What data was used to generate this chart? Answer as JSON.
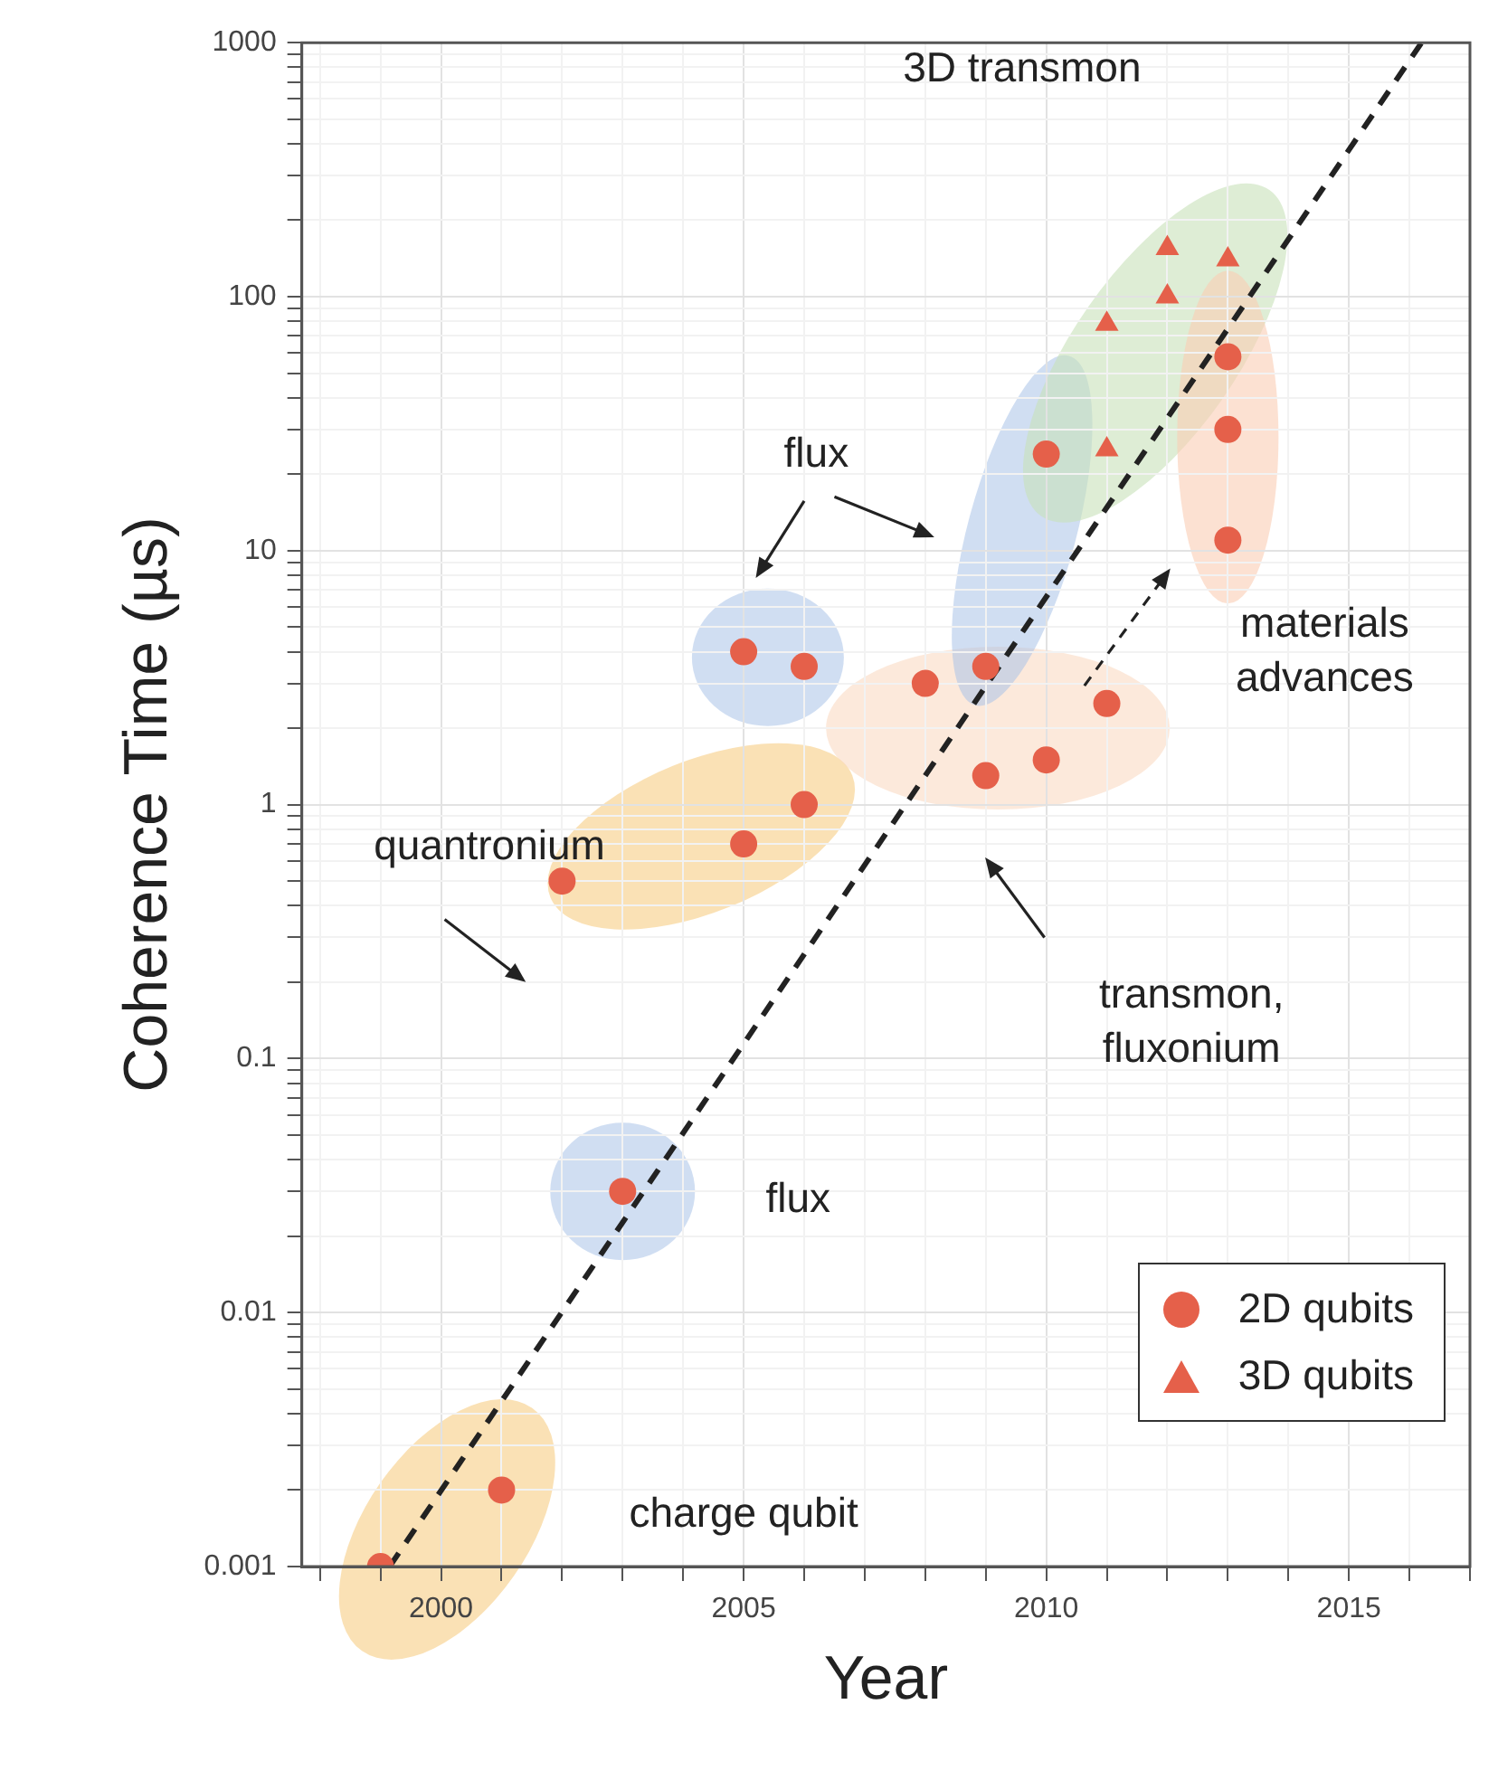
{
  "chart_data": {
    "type": "scatter",
    "xlabel": "Year",
    "ylabel": "Coherence Time (µs)",
    "log": "y",
    "grid": true,
    "legend": "bottom right",
    "xlim": [
      1997.7,
      2017
    ],
    "xticks": [
      {
        "value": 1998,
        "label": null
      },
      {
        "value": 1999,
        "label": null
      },
      2000,
      {
        "value": 2001,
        "label": null
      },
      {
        "value": 2002,
        "label": null
      },
      {
        "value": 2003,
        "label": null
      },
      {
        "value": 2004,
        "label": null
      },
      2005,
      {
        "value": 2006,
        "label": null
      },
      {
        "value": 2007,
        "label": null
      },
      {
        "value": 2008,
        "label": null
      },
      {
        "value": 2009,
        "label": null
      },
      2010,
      {
        "value": 2011,
        "label": null
      },
      {
        "value": 2012,
        "label": null
      },
      {
        "value": 2013,
        "label": null
      },
      {
        "value": 2014,
        "label": null
      },
      2015,
      {
        "value": 2016,
        "label": null
      },
      {
        "value": 2017,
        "label": null
      }
    ],
    "ylim": [
      0.001,
      1000
    ],
    "yticks": [
      0.001,
      {
        "value": 0.002,
        "label": null
      },
      {
        "value": 0.003,
        "label": null
      },
      {
        "value": 0.004,
        "label": null
      },
      {
        "value": 0.005,
        "label": null
      },
      {
        "value": 0.006,
        "label": null
      },
      {
        "value": 0.007,
        "label": null
      },
      {
        "value": 0.008,
        "label": null
      },
      {
        "value": 0.009,
        "label": null
      },
      0.01,
      {
        "value": 0.02,
        "label": null
      },
      {
        "value": 0.03,
        "label": null
      },
      {
        "value": 0.04,
        "label": null
      },
      {
        "value": 0.05,
        "label": null
      },
      {
        "value": 0.06,
        "label": null
      },
      {
        "value": 0.07,
        "label": null
      },
      {
        "value": 0.08,
        "label": null
      },
      {
        "value": 0.09,
        "label": null
      },
      0.1,
      {
        "value": 0.2,
        "label": null
      },
      {
        "value": 0.3,
        "label": null
      },
      {
        "value": 0.4,
        "label": null
      },
      {
        "value": 0.5,
        "label": null
      },
      {
        "value": 0.6,
        "label": null
      },
      {
        "value": 0.7,
        "label": null
      },
      {
        "value": 0.8,
        "label": null
      },
      {
        "value": 0.9,
        "label": null
      },
      1,
      {
        "value": 2,
        "label": null
      },
      {
        "value": 3,
        "label": null
      },
      {
        "value": 4,
        "label": null
      },
      {
        "value": 5,
        "label": null
      },
      {
        "value": 6,
        "label": null
      },
      {
        "value": 7,
        "label": null
      },
      {
        "value": 8,
        "label": null
      },
      {
        "value": 9,
        "label": null
      },
      10,
      {
        "value": 20,
        "label": null
      },
      {
        "value": 30,
        "label": null
      },
      {
        "value": 40,
        "label": null
      },
      {
        "value": 50,
        "label": null
      },
      {
        "value": 60,
        "label": null
      },
      {
        "value": 70,
        "label": null
      },
      {
        "value": 80,
        "label": null
      },
      {
        "value": 90,
        "label": null
      },
      100,
      {
        "value": 200,
        "label": null
      },
      {
        "value": 300,
        "label": null
      },
      {
        "value": 400,
        "label": null
      },
      {
        "value": 500,
        "label": null
      },
      {
        "value": 600,
        "label": null
      },
      {
        "value": 700,
        "label": null
      },
      {
        "value": 800,
        "label": null
      },
      {
        "value": 900,
        "label": null
      },
      1000
    ],
    "series": [
      {
        "name": "2D qubits",
        "marker": "circle",
        "color": "#e5604a",
        "x": [
          1999,
          2001,
          2003,
          2002,
          2005,
          2006,
          2005,
          2006,
          2008,
          2009,
          2009,
          2010,
          2011,
          2010,
          2013,
          2013,
          2013
        ],
        "values": [
          0.001,
          0.002,
          0.03,
          0.5,
          0.7,
          1.0,
          4,
          3.5,
          3,
          3.5,
          1.3,
          1.5,
          2.5,
          24,
          58,
          30,
          11
        ]
      },
      {
        "name": "3D qubits",
        "marker": "triangle",
        "color": "#e5604a",
        "x": [
          2011,
          2012,
          2012,
          2013,
          2011
        ],
        "values": [
          78,
          155,
          100,
          140,
          25
        ]
      },
      {
        "type": "line",
        "marker": "none",
        "line_style": "dashed",
        "color": "#222222",
        "x": [
          1999.15,
          2016.2
        ],
        "values": [
          0.001,
          1000
        ]
      }
    ],
    "annotations": [
      "3D transmon",
      "flux",
      "quantronium",
      "transmon, fluxonium",
      "materials advances",
      "flux",
      "charge qubit"
    ]
  }
}
